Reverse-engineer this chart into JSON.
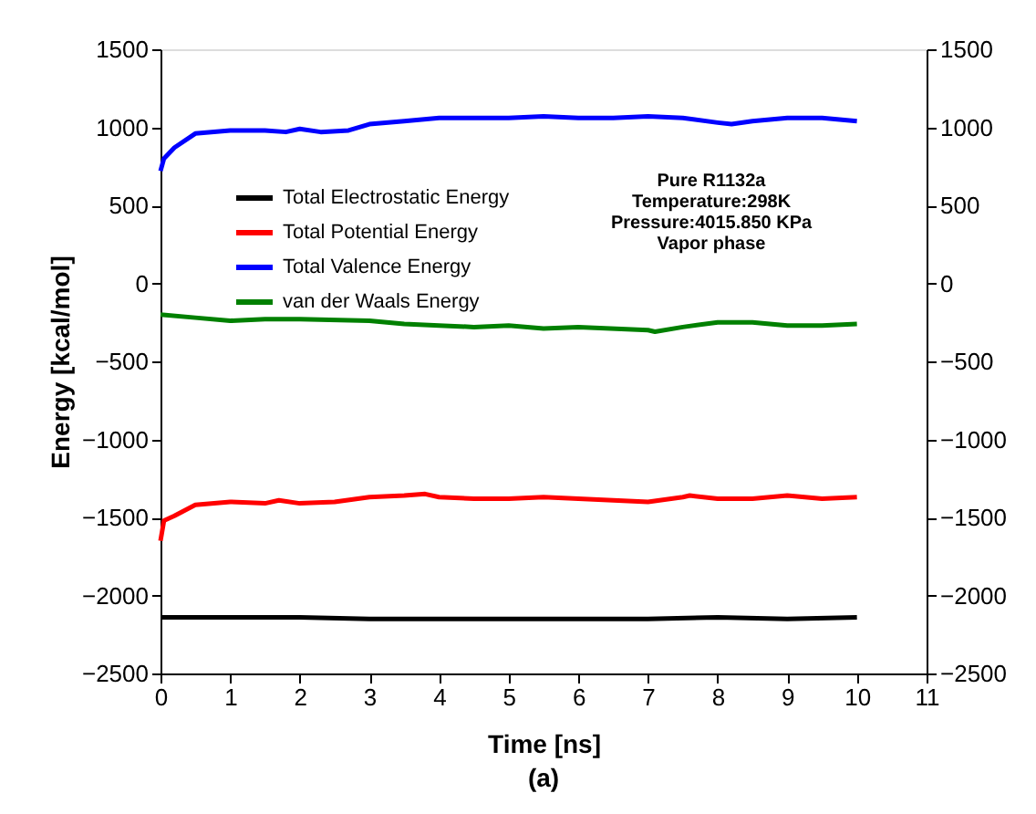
{
  "chart_data": {
    "type": "line",
    "xlabel": "Time [ns]",
    "ylabel": "Energy [kcal/mol]",
    "xlim": [
      0,
      11
    ],
    "xticks": [
      0,
      1,
      2,
      3,
      4,
      5,
      6,
      7,
      8,
      9,
      10,
      11
    ],
    "ylim": [
      -2500,
      1500
    ],
    "yticks": [
      -2500,
      -2000,
      -1500,
      -1000,
      -500,
      0,
      500,
      1000,
      1500
    ],
    "y2lim": [
      -2500,
      1500
    ],
    "y2ticks": [
      -2500,
      -2000,
      -1500,
      -1000,
      -500,
      0,
      500,
      1000,
      1500
    ],
    "legend": "top left",
    "grid": false,
    "marker": "none",
    "line_style": "solid",
    "annotations": [
      "Pure R1132a",
      "Temperature:298K",
      "Pressure:4015.850 KPa",
      "Vapor phase",
      "(a)"
    ],
    "series": [
      {
        "name": "Total Electrostatic Energy",
        "color": "#000000",
        "x": [
          0,
          1,
          2,
          3,
          4,
          5,
          6,
          7,
          8,
          9,
          10
        ],
        "values": [
          -2140,
          -2140,
          -2140,
          -2150,
          -2150,
          -2150,
          -2150,
          -2150,
          -2140,
          -2150,
          -2140
        ]
      },
      {
        "name": "Total Potential Energy",
        "color": "#ff0000",
        "x": [
          0,
          0.05,
          0.2,
          0.5,
          1,
          1.5,
          1.7,
          2,
          2.5,
          3,
          3.5,
          3.8,
          4,
          4.5,
          5,
          5.5,
          6,
          7,
          7.5,
          7.6,
          8,
          8.5,
          9,
          9.5,
          10
        ],
        "values": [
          -1650,
          -1520,
          -1490,
          -1420,
          -1400,
          -1410,
          -1390,
          -1410,
          -1400,
          -1370,
          -1360,
          -1350,
          -1370,
          -1380,
          -1380,
          -1370,
          -1380,
          -1400,
          -1370,
          -1360,
          -1380,
          -1380,
          -1360,
          -1380,
          -1370
        ]
      },
      {
        "name": "Total Valence Energy",
        "color": "#0000ff",
        "x": [
          0,
          0.05,
          0.2,
          0.5,
          1,
          1.5,
          1.8,
          2,
          2.3,
          2.7,
          3,
          3.5,
          4,
          4.5,
          5,
          5.5,
          6,
          6.5,
          7,
          7.5,
          8,
          8.2,
          8.5,
          9,
          9.5,
          10
        ],
        "values": [
          720,
          800,
          870,
          960,
          980,
          980,
          970,
          990,
          970,
          980,
          1020,
          1040,
          1060,
          1060,
          1060,
          1070,
          1060,
          1060,
          1070,
          1060,
          1030,
          1020,
          1040,
          1060,
          1060,
          1040
        ]
      },
      {
        "name": "van der Waals Energy",
        "color": "#008000",
        "x": [
          0,
          0.5,
          1,
          1.5,
          2,
          3,
          3.5,
          4,
          4.5,
          5,
          5.5,
          6,
          7,
          7.1,
          7.5,
          8,
          8.5,
          9,
          9.5,
          10
        ],
        "values": [
          -200,
          -220,
          -240,
          -230,
          -230,
          -240,
          -260,
          -270,
          -280,
          -270,
          -290,
          -280,
          -300,
          -310,
          -280,
          -250,
          -250,
          -270,
          -270,
          -260
        ]
      }
    ]
  }
}
